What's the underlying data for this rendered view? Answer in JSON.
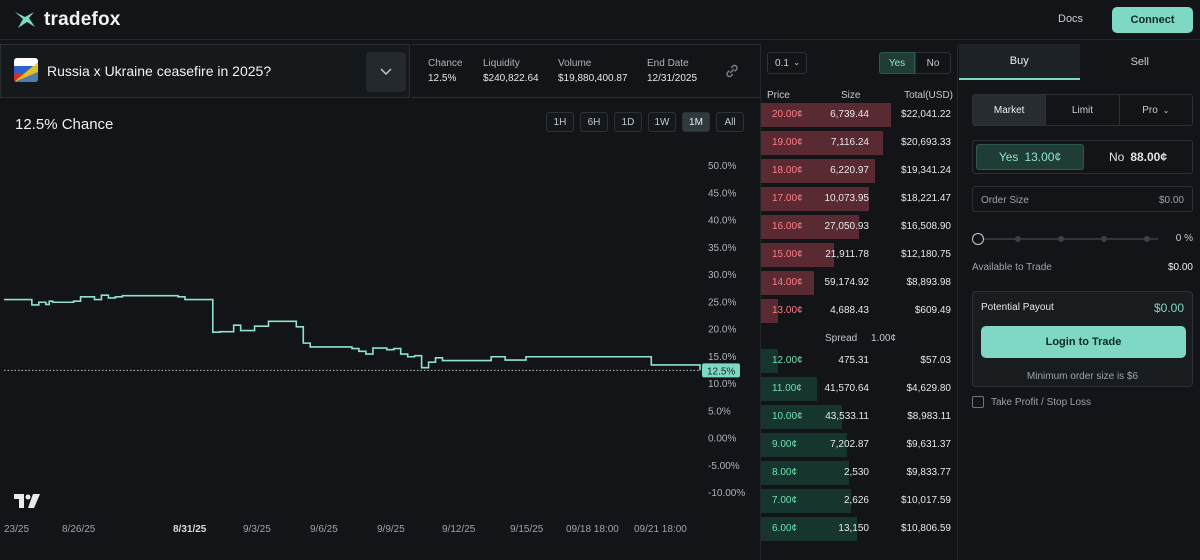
{
  "app": {
    "name": "tradefox"
  },
  "header": {
    "docs_label": "Docs",
    "connect_label": "Connect"
  },
  "market": {
    "title": "Russia x Ukraine ceasefire in 2025?",
    "stats": [
      {
        "label": "Chance",
        "value": "12.5%"
      },
      {
        "label": "Liquidity",
        "value": "$240,822.64"
      },
      {
        "label": "Volume",
        "value": "$19,880,400.87"
      },
      {
        "label": "End Date",
        "value": "12/31/2025"
      }
    ]
  },
  "chart": {
    "headline": "12.5% Chance",
    "timeframes": [
      "1H",
      "6H",
      "1D",
      "1W",
      "1M",
      "All"
    ],
    "active_timeframe": "1M",
    "current_label": "12.5%"
  },
  "chart_data": {
    "type": "line",
    "ylim": [
      -10,
      50
    ],
    "y_tick_labels": [
      "50.0%",
      "45.0%",
      "40.0%",
      "35.0%",
      "30.0%",
      "25.0%",
      "20.0%",
      "15.0%",
      "10.0%",
      "5.0%",
      "0.00%",
      "-5.00%",
      "-10.00%"
    ],
    "x_tick_labels": [
      "23/25",
      "8/26/25",
      "8/31/25",
      "9/3/25",
      "9/6/25",
      "9/9/25",
      "9/12/25",
      "9/15/25",
      "09/18 18:00",
      "09/21 18:00"
    ],
    "series": [
      {
        "x": [
          0,
          0.035,
          0.04,
          0.05,
          0.06,
          0.065,
          0.07,
          0.1,
          0.11,
          0.13,
          0.14,
          0.15,
          0.16,
          0.17,
          0.25,
          0.26,
          0.29,
          0.3,
          0.31,
          0.33,
          0.34,
          0.36,
          0.38,
          0.41,
          0.42,
          0.43,
          0.44,
          0.5,
          0.51,
          0.52,
          0.53,
          0.55,
          0.56,
          0.57,
          0.58,
          0.59,
          0.6,
          0.61,
          0.62,
          0.63,
          0.7,
          0.72,
          0.75,
          0.8,
          0.87,
          0.93,
          0.98,
          1.0
        ],
        "y": [
          25.5,
          25.5,
          24.5,
          25.0,
          24.6,
          25.2,
          25.0,
          25.2,
          26.0,
          25.5,
          26.3,
          25.8,
          26.0,
          26.2,
          26.0,
          25.5,
          25.5,
          19.5,
          19.6,
          20.8,
          19.8,
          20.6,
          21.5,
          21.5,
          20.5,
          17.5,
          16.8,
          16.5,
          16.0,
          15.5,
          16.6,
          16.3,
          16.5,
          15.5,
          15.0,
          15.2,
          13.0,
          14.0,
          14.8,
          14.3,
          15.0,
          14.4,
          15.0,
          15.0,
          15.0,
          13.5,
          13.5,
          12.5
        ]
      }
    ]
  },
  "orderbook": {
    "tick": "0.1",
    "yes_label": "Yes",
    "no_label": "No",
    "headers": {
      "price": "Price",
      "size": "Size",
      "total": "Total(USD)"
    },
    "asks": [
      {
        "price": "20.00¢",
        "size": "6,739.44",
        "total": "$22,041.22",
        "depth": 1.0
      },
      {
        "price": "19.00¢",
        "size": "7,116.24",
        "total": "$20,693.33",
        "depth": 0.94
      },
      {
        "price": "18.00¢",
        "size": "6,220.97",
        "total": "$19,341.24",
        "depth": 0.88
      },
      {
        "price": "17.00¢",
        "size": "10,073.95",
        "total": "$18,221.47",
        "depth": 0.83
      },
      {
        "price": "16.00¢",
        "size": "27,050.93",
        "total": "$16,508.90",
        "depth": 0.75
      },
      {
        "price": "15.00¢",
        "size": "21,911.78",
        "total": "$12,180.75",
        "depth": 0.56
      },
      {
        "price": "14.00¢",
        "size": "59,174.92",
        "total": "$8,893.98",
        "depth": 0.41
      },
      {
        "price": "13.00¢",
        "size": "4,688.43",
        "total": "$609.49",
        "depth": 0.13
      }
    ],
    "spread_label": "Spread",
    "spread_value": "1.00¢",
    "bids": [
      {
        "price": "12.00¢",
        "size": "475.31",
        "total": "$57.03",
        "depth": 0.13
      },
      {
        "price": "11.00¢",
        "size": "41,570.64",
        "total": "$4,629.80",
        "depth": 0.43
      },
      {
        "price": "10.00¢",
        "size": "43,533.11",
        "total": "$8,983.11",
        "depth": 0.62
      },
      {
        "price": "9.00¢",
        "size": "7,202.87",
        "total": "$9,631.37",
        "depth": 0.66
      },
      {
        "price": "8.00¢",
        "size": "2,530",
        "total": "$9,833.77",
        "depth": 0.68
      },
      {
        "price": "7.00¢",
        "size": "2,626",
        "total": "$10,017.59",
        "depth": 0.69
      },
      {
        "price": "6.00¢",
        "size": "13,150",
        "total": "$10,806.59",
        "depth": 0.74
      }
    ]
  },
  "trade": {
    "buy_label": "Buy",
    "sell_label": "Sell",
    "order_types": [
      "Market",
      "Limit",
      "Pro"
    ],
    "yes_label": "Yes",
    "yes_price": "13.00¢",
    "no_label": "No",
    "no_price": "88.00¢",
    "order_size_label": "Order Size",
    "order_size_value": "$0.00",
    "slider_percent": "0 %",
    "available_label": "Available to Trade",
    "available_value": "$0.00",
    "payout_label": "Potential Payout",
    "payout_value": "$0.00",
    "login_label": "Login to Trade",
    "min_order": "Minimum order size is $6",
    "tpsl_label": "Take Profit / Stop Loss"
  },
  "colors": {
    "accent": "#7fd8c3",
    "ask_bar": "#5a2a33",
    "bid_bar": "#17352f",
    "ask_text": "#ff7d86",
    "bid_text": "#6fe3b4"
  }
}
